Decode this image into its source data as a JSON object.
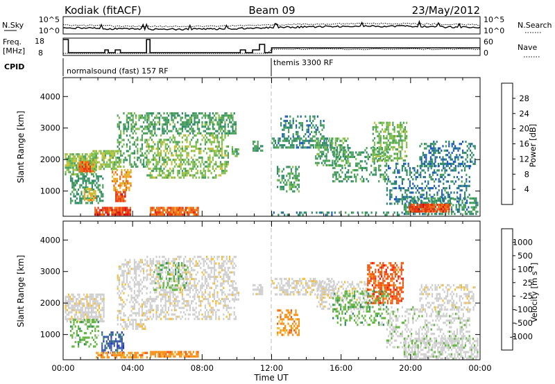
{
  "header": {
    "station": "Kodiak (fitACF)",
    "beam": "Beam 09",
    "date": "23/May/2012"
  },
  "top_panels": {
    "nsky_label": "N.Sky",
    "nsearch_label": "N.Search",
    "noise_ticks_left": [
      "10^5",
      "10^0"
    ],
    "noise_ticks_right": [
      "10^5",
      "10^0"
    ],
    "freq_label": "Freq.",
    "freq_unit": "[MHz]",
    "freq_ticks": [
      "18",
      "8"
    ],
    "nave_label": "Nave",
    "nave_ticks": [
      "60",
      "0"
    ],
    "cpid_label": "CPID",
    "cpid_segments": [
      {
        "name": "normalsound (fast) 157 RF",
        "start_hour": 0.0
      },
      {
        "name": "themis 3300 RF",
        "start_hour": 12.0
      }
    ]
  },
  "colors": {
    "power_scale": [
      "#0a14e6",
      "#1f5bbf",
      "#2f8a68",
      "#4aa25a",
      "#7fbf4a",
      "#c7c032",
      "#f0a81e",
      "#ee6a12",
      "#e8300e",
      "#d40a0a"
    ],
    "velocity_scale": [
      "#ee1a12",
      "#f25a12",
      "#f6921a",
      "#f8be32",
      "#cfcfcf",
      "#cfcfcf",
      "#62b63e",
      "#2f8a68",
      "#3b5aa8",
      "#2438c0"
    ]
  },
  "chart_data": [
    {
      "type": "heatmap",
      "name": "power",
      "ylabel": "Slant Range [km]",
      "yticks": [
        "1000",
        "2000",
        "3000",
        "4000"
      ],
      "ylim": [
        200,
        4600
      ],
      "xlim_hours": [
        0,
        24
      ],
      "colorbar": {
        "label": "Power [dB]",
        "ticks": [
          "4",
          "8",
          "12",
          "16",
          "20",
          "24",
          "28"
        ],
        "range": [
          0,
          32
        ]
      },
      "regions": [
        {
          "t0": 0.1,
          "t1": 1.9,
          "r0": 1500,
          "r1": 2200,
          "v": 14,
          "d": 0.75
        },
        {
          "t0": 0.9,
          "t1": 1.7,
          "r0": 1650,
          "r1": 1950,
          "v": 26,
          "d": 0.9
        },
        {
          "t0": 0.4,
          "t1": 2.3,
          "r0": 600,
          "r1": 1500,
          "v": 9,
          "d": 0.5
        },
        {
          "t0": 1.6,
          "t1": 3.3,
          "r0": 1700,
          "r1": 2300,
          "v": 15,
          "d": 0.65
        },
        {
          "t0": 1.2,
          "t1": 1.9,
          "r0": 700,
          "r1": 1100,
          "v": 20,
          "d": 0.7
        },
        {
          "t0": 2.8,
          "t1": 3.9,
          "r0": 1000,
          "r1": 1700,
          "v": 22,
          "d": 0.6
        },
        {
          "t0": 3.0,
          "t1": 3.6,
          "r0": 700,
          "r1": 1000,
          "v": 27,
          "d": 0.85
        },
        {
          "t0": 1.8,
          "t1": 3.9,
          "r0": 250,
          "r1": 500,
          "v": 28,
          "d": 0.85
        },
        {
          "t0": 3.1,
          "t1": 4.8,
          "r0": 1800,
          "r1": 3500,
          "v": 11,
          "d": 0.4
        },
        {
          "t0": 4.8,
          "t1": 9.9,
          "r0": 2800,
          "r1": 3500,
          "v": 10,
          "d": 0.55
        },
        {
          "t0": 4.8,
          "t1": 9.5,
          "r0": 1400,
          "r1": 2800,
          "v": 14,
          "d": 0.45
        },
        {
          "t0": 5.0,
          "t1": 7.8,
          "r0": 280,
          "r1": 500,
          "v": 25,
          "d": 0.85
        },
        {
          "t0": 9.7,
          "t1": 10.1,
          "r0": 2100,
          "r1": 2500,
          "v": 12,
          "d": 0.5
        },
        {
          "t0": 10.9,
          "t1": 11.5,
          "r0": 2300,
          "r1": 2600,
          "v": 9,
          "d": 0.6
        },
        {
          "t0": 12.0,
          "t1": 15.6,
          "r0": 2350,
          "r1": 2700,
          "v": 8,
          "d": 0.6
        },
        {
          "t0": 12.5,
          "t1": 15.0,
          "r0": 2700,
          "r1": 3400,
          "v": 7,
          "d": 0.35
        },
        {
          "t0": 12.3,
          "t1": 13.6,
          "r0": 1000,
          "r1": 1800,
          "v": 10,
          "d": 0.45
        },
        {
          "t0": 14.5,
          "t1": 16.4,
          "r0": 1800,
          "r1": 2700,
          "v": 11,
          "d": 0.45
        },
        {
          "t0": 15.5,
          "t1": 18.7,
          "r0": 1300,
          "r1": 2400,
          "v": 10,
          "d": 0.35
        },
        {
          "t0": 17.8,
          "t1": 19.8,
          "r0": 2000,
          "r1": 3200,
          "v": 13,
          "d": 0.5
        },
        {
          "t0": 18.6,
          "t1": 23.4,
          "r0": 600,
          "r1": 1900,
          "v": 6,
          "d": 0.3
        },
        {
          "t0": 20.5,
          "t1": 23.7,
          "r0": 1800,
          "r1": 2600,
          "v": 6,
          "d": 0.35
        },
        {
          "t0": 19.6,
          "t1": 23.9,
          "r0": 250,
          "r1": 800,
          "v": 8,
          "d": 0.55
        },
        {
          "t0": 19.9,
          "t1": 22.2,
          "r0": 320,
          "r1": 600,
          "v": 27,
          "d": 0.9
        },
        {
          "t0": 12.0,
          "t1": 19.5,
          "r0": 230,
          "r1": 350,
          "v": 7,
          "d": 0.35
        }
      ]
    },
    {
      "type": "heatmap",
      "name": "velocity",
      "ylabel": "Slant Range [km]",
      "yticks": [
        "1000",
        "2000",
        "3000",
        "4000"
      ],
      "ylim": [
        200,
        4600
      ],
      "xlabel": "Time UT",
      "xticks": [
        "00:00",
        "04:00",
        "08:00",
        "12:00",
        "16:00",
        "20:00",
        "00:00"
      ],
      "xlim_hours": [
        0,
        24
      ],
      "colorbar": {
        "label": "Velocity [m s",
        "label_sup": "-1",
        "label_close": "]",
        "ticks": [
          "1000",
          "500",
          "100",
          "25",
          "-25",
          "-100",
          "-500",
          "-1000"
        ]
      },
      "regions": [
        {
          "t0": 0.1,
          "t1": 2.3,
          "r0": 1400,
          "r1": 2300,
          "v": 4,
          "d": 0.7
        },
        {
          "t0": 0.4,
          "t1": 2.0,
          "r0": 600,
          "r1": 1500,
          "v": 6,
          "d": 0.4
        },
        {
          "t0": 2.2,
          "t1": 3.5,
          "r0": 450,
          "r1": 1100,
          "v": 8,
          "d": 0.55
        },
        {
          "t0": 1.8,
          "t1": 4.8,
          "r0": 250,
          "r1": 450,
          "v": 2,
          "d": 0.7
        },
        {
          "t0": 3.1,
          "t1": 4.8,
          "r0": 1200,
          "r1": 3400,
          "v": 4,
          "d": 0.4
        },
        {
          "t0": 4.8,
          "t1": 9.9,
          "r0": 1500,
          "r1": 3500,
          "v": 4,
          "d": 0.45
        },
        {
          "t0": 5.2,
          "t1": 7.2,
          "r0": 2400,
          "r1": 3300,
          "v": 6,
          "d": 0.3
        },
        {
          "t0": 5.0,
          "t1": 7.8,
          "r0": 280,
          "r1": 480,
          "v": 2,
          "d": 0.8
        },
        {
          "t0": 9.7,
          "t1": 10.1,
          "r0": 2100,
          "r1": 2500,
          "v": 4,
          "d": 0.5
        },
        {
          "t0": 10.9,
          "t1": 11.5,
          "r0": 2300,
          "r1": 2600,
          "v": 4,
          "d": 0.6
        },
        {
          "t0": 12.0,
          "t1": 15.6,
          "r0": 2300,
          "r1": 2800,
          "v": 4,
          "d": 0.5
        },
        {
          "t0": 12.3,
          "t1": 13.6,
          "r0": 1000,
          "r1": 1800,
          "v": 2,
          "d": 0.45
        },
        {
          "t0": 14.5,
          "t1": 17.5,
          "r0": 1800,
          "r1": 2700,
          "v": 4,
          "d": 0.4
        },
        {
          "t0": 17.5,
          "t1": 19.6,
          "r0": 2000,
          "r1": 3300,
          "v": 1,
          "d": 0.55
        },
        {
          "t0": 15.5,
          "t1": 18.7,
          "r0": 1300,
          "r1": 2400,
          "v": 6,
          "d": 0.3
        },
        {
          "t0": 18.6,
          "t1": 23.4,
          "r0": 600,
          "r1": 1900,
          "v": 5,
          "d": 0.3
        },
        {
          "t0": 20.5,
          "t1": 23.7,
          "r0": 1800,
          "r1": 2600,
          "v": 4,
          "d": 0.45
        },
        {
          "t0": 19.6,
          "t1": 23.9,
          "r0": 250,
          "r1": 900,
          "v": 5,
          "d": 0.55
        }
      ]
    }
  ]
}
